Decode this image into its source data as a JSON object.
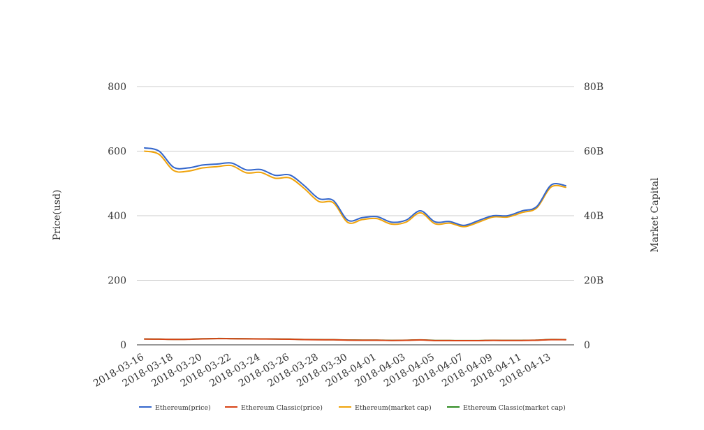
{
  "chart_data": {
    "type": "line",
    "title": "",
    "y_left": {
      "label": "Price(usd)",
      "ticks": [
        "0",
        "200",
        "400",
        "600",
        "800"
      ],
      "range": [
        0,
        800
      ]
    },
    "y_right": {
      "label": "Market Capital",
      "ticks": [
        "0",
        "20B",
        "40B",
        "60B",
        "80B"
      ],
      "range": [
        0,
        80000000000
      ]
    },
    "x_tick_labels": [
      "2018-03-16",
      "2018-03-18",
      "2018-03-20",
      "2018-03-22",
      "2018-03-24",
      "2018-03-26",
      "2018-03-28",
      "2018-03-30",
      "2018-04-01",
      "2018-04-03",
      "2018-04-05",
      "2018-04-07",
      "2018-04-09",
      "2018-04-11",
      "2018-04-13"
    ],
    "x": [
      "2018-03-16",
      "2018-03-17",
      "2018-03-18",
      "2018-03-19",
      "2018-03-20",
      "2018-03-21",
      "2018-03-22",
      "2018-03-23",
      "2018-03-24",
      "2018-03-25",
      "2018-03-26",
      "2018-03-27",
      "2018-03-28",
      "2018-03-29",
      "2018-03-30",
      "2018-03-31",
      "2018-04-01",
      "2018-04-02",
      "2018-04-03",
      "2018-04-04",
      "2018-04-05",
      "2018-04-06",
      "2018-04-07",
      "2018-04-08",
      "2018-04-09",
      "2018-04-10",
      "2018-04-11",
      "2018-04-12",
      "2018-04-13",
      "2018-04-14"
    ],
    "grid": true,
    "legend_position": "bottom",
    "series": [
      {
        "name": "Ethereum(price)",
        "axis": "left",
        "color": "#3366cc",
        "values": [
          610,
          600,
          550,
          548,
          557,
          560,
          563,
          542,
          543,
          525,
          526,
          493,
          453,
          447,
          386,
          394,
          397,
          380,
          386,
          415,
          381,
          382,
          370,
          385,
          400,
          400,
          415,
          428,
          495,
          493
        ]
      },
      {
        "name": "Ethereum Classic(price)",
        "axis": "left",
        "color": "#d84315",
        "values": [
          17.8,
          17.5,
          16.8,
          16.9,
          18.5,
          19.3,
          18.9,
          18.6,
          18.2,
          17.7,
          17.4,
          16.3,
          15.8,
          15.6,
          14.6,
          14.4,
          14.2,
          13.6,
          14.0,
          15.1,
          13.3,
          13.2,
          12.9,
          13.0,
          13.8,
          13.4,
          13.6,
          14.3,
          16.0,
          15.8
        ]
      },
      {
        "name": "Ethereum(market cap)",
        "axis": "right",
        "color": "#f0a30a",
        "values": [
          60000000000,
          59000000000,
          54000000000,
          53800000000,
          54800000000,
          55200000000,
          55500000000,
          53300000000,
          53400000000,
          51600000000,
          51700000000,
          48400000000,
          44400000000,
          44000000000,
          37900000000,
          38800000000,
          39100000000,
          37400000000,
          38000000000,
          40900000000,
          37500000000,
          37700000000,
          36600000000,
          38000000000,
          39600000000,
          39600000000,
          41000000000,
          42400000000,
          48900000000,
          48800000000
        ]
      },
      {
        "name": "Ethereum Classic(market cap)",
        "axis": "right",
        "color": "#2e8b22",
        "values": [
          1800000000,
          1770000000,
          1700000000,
          1720000000,
          1880000000,
          1960000000,
          1920000000,
          1890000000,
          1850000000,
          1800000000,
          1770000000,
          1660000000,
          1610000000,
          1590000000,
          1490000000,
          1470000000,
          1450000000,
          1390000000,
          1430000000,
          1540000000,
          1360000000,
          1350000000,
          1320000000,
          1330000000,
          1410000000,
          1370000000,
          1390000000,
          1460000000,
          1640000000,
          1620000000
        ]
      }
    ]
  }
}
